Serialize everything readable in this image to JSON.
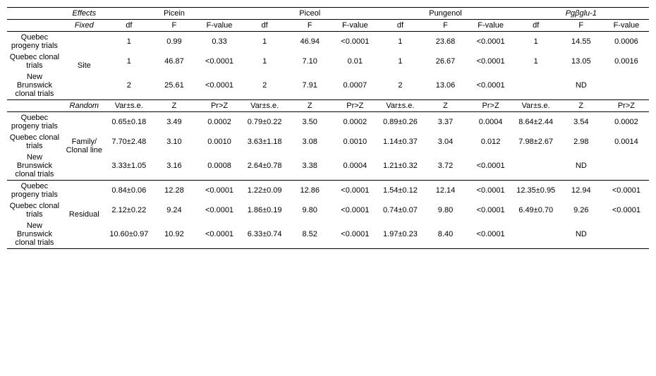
{
  "headers": {
    "effects": "Effects",
    "compounds": [
      "Picein",
      "Piceol",
      "Pungenol",
      "Pgβglu-1"
    ],
    "fixed": "Fixed",
    "random": "Random",
    "fixed_cols": [
      "df",
      "F",
      "F-value"
    ],
    "random_cols": [
      "Var±s.e.",
      "Z",
      "Pr>Z"
    ]
  },
  "trials": {
    "qp": "Quebec progeny trials",
    "qc": "Quebec clonal trials",
    "nb": "New Brunswick clonal trials"
  },
  "effects": {
    "site": "Site",
    "family": "Family/\nClonal line",
    "residual": "Residual"
  },
  "nd": "ND",
  "fixed": {
    "qp": {
      "picein": [
        "1",
        "0.99",
        "0.33"
      ],
      "piceol": [
        "1",
        "46.94",
        "<0.0001"
      ],
      "pungenol": [
        "1",
        "23.68",
        "<0.0001"
      ],
      "pgb": [
        "1",
        "14.55",
        "0.0006"
      ]
    },
    "qc": {
      "picein": [
        "1",
        "46.87",
        "<0.0001"
      ],
      "piceol": [
        "1",
        "7.10",
        "0.01"
      ],
      "pungenol": [
        "1",
        "26.67",
        "<0.0001"
      ],
      "pgb": [
        "1",
        "13.05",
        "0.0016"
      ]
    },
    "nb": {
      "picein": [
        "2",
        "25.61",
        "<0.0001"
      ],
      "piceol": [
        "2",
        "7.91",
        "0.0007"
      ],
      "pungenol": [
        "2",
        "13.06",
        "<0.0001"
      ],
      "pgb": [
        "",
        "ND",
        ""
      ]
    }
  },
  "family": {
    "qp": {
      "picein": [
        "0.65±0.18",
        "3.49",
        "0.0002"
      ],
      "piceol": [
        "0.79±0.22",
        "3.50",
        "0.0002"
      ],
      "pungenol": [
        "0.89±0.26",
        "3.37",
        "0.0004"
      ],
      "pgb": [
        "8.64±2.44",
        "3.54",
        "0.0002"
      ]
    },
    "qc": {
      "picein": [
        "7.70±2.48",
        "3.10",
        "0.0010"
      ],
      "piceol": [
        "3.63±1.18",
        "3.08",
        "0.0010"
      ],
      "pungenol": [
        "1.14±0.37",
        "3.04",
        "0.012"
      ],
      "pgb": [
        "7.98±2.67",
        "2.98",
        "0.0014"
      ]
    },
    "nb": {
      "picein": [
        "3.33±1.05",
        "3.16",
        "0.0008"
      ],
      "piceol": [
        "2.64±0.78",
        "3.38",
        "0.0004"
      ],
      "pungenol": [
        "1.21±0.32",
        "3.72",
        "<0.0001"
      ],
      "pgb": [
        "",
        "ND",
        ""
      ]
    }
  },
  "residual": {
    "qp": {
      "picein": [
        "0.84±0.06",
        "12.28",
        "<0.0001"
      ],
      "piceol": [
        "1.22±0.09",
        "12.86",
        "<0.0001"
      ],
      "pungenol": [
        "1.54±0.12",
        "12.14",
        "<0.0001"
      ],
      "pgb": [
        "12.35±0.95",
        "12.94",
        "<0.0001"
      ]
    },
    "qc": {
      "picein": [
        "2.12±0.22",
        "9.24",
        "<0.0001"
      ],
      "piceol": [
        "1.86±0.19",
        "9.80",
        "<0.0001"
      ],
      "pungenol": [
        "0.74±0.07",
        "9.80",
        "<0.0001"
      ],
      "pgb": [
        "6.49±0.70",
        "9.26",
        "<0.0001"
      ]
    },
    "nb": {
      "picein": [
        "10.60±0.97",
        "10.92",
        "<0.0001"
      ],
      "piceol": [
        "6.33±0.74",
        "8.52",
        "<0.0001"
      ],
      "pungenol": [
        "1.97±0.23",
        "8.40",
        "<0.0001"
      ],
      "pgb": [
        "",
        "ND",
        ""
      ]
    }
  }
}
